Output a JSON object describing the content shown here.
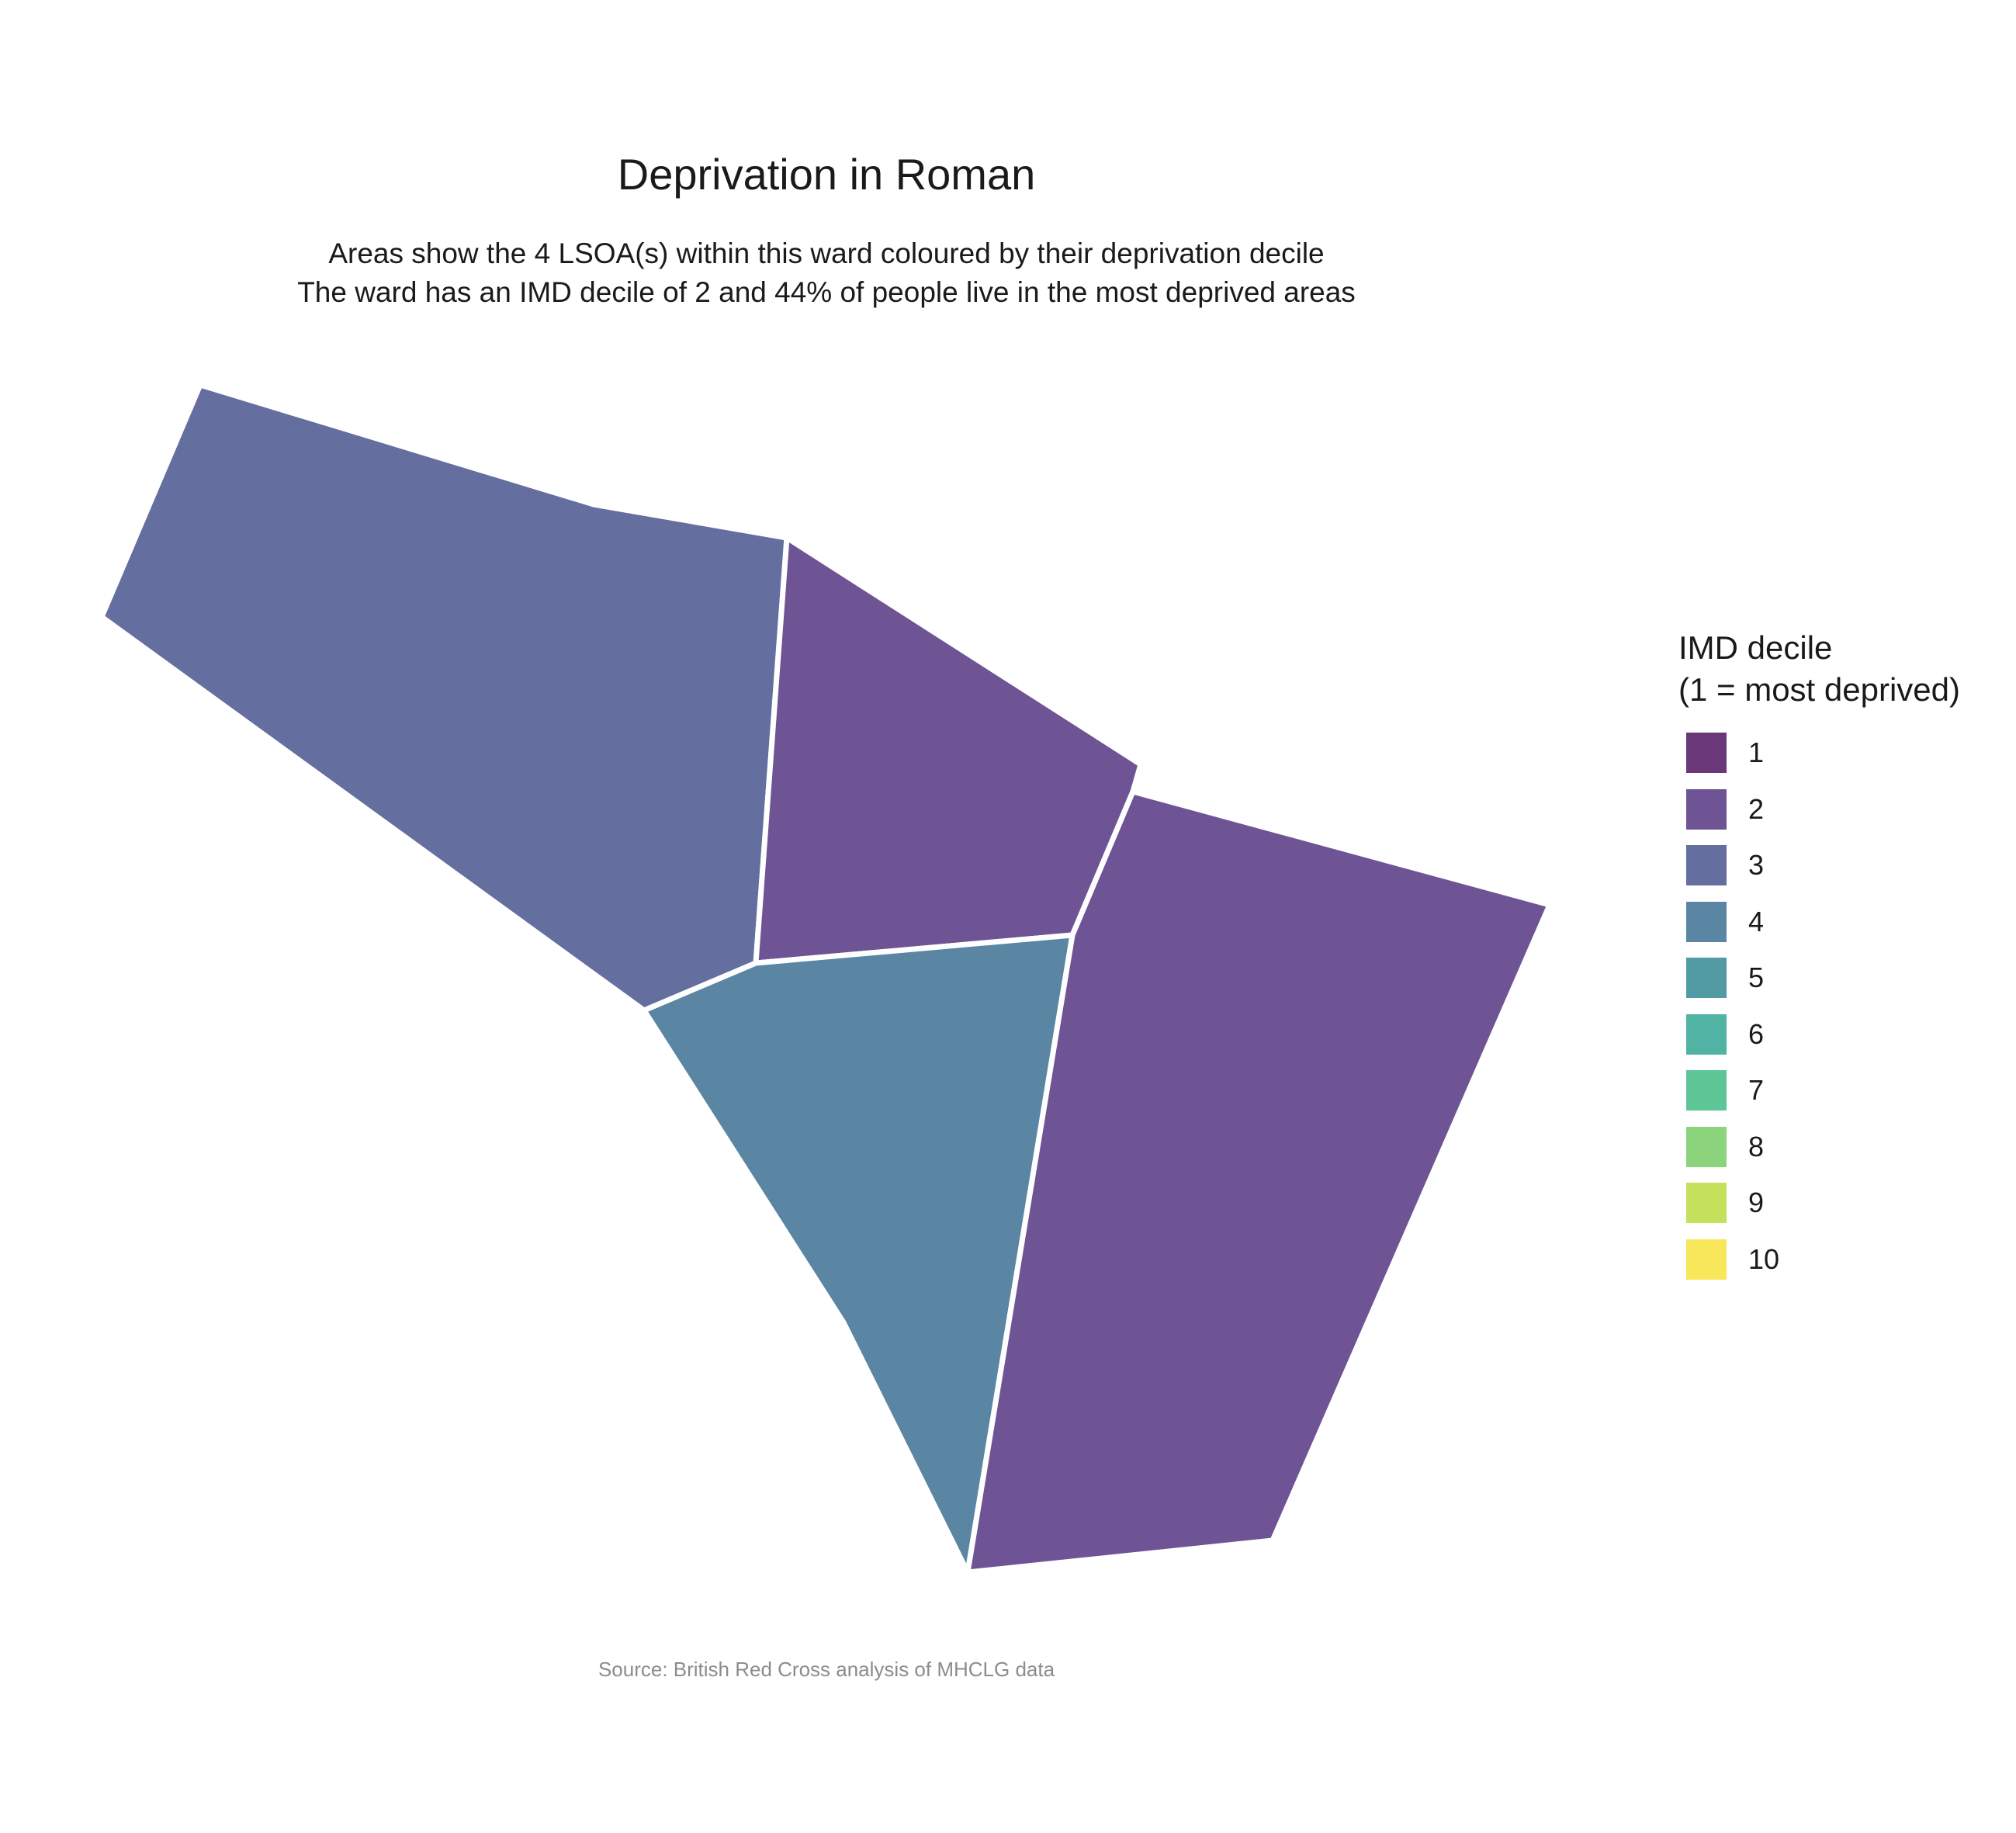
{
  "title": "Deprivation in Roman",
  "subtitle": {
    "line1": "Areas show the 4 LSOA(s) within this ward coloured by their deprivation decile",
    "line2": "The ward has an IMD decile of 2 and 44% of people live in the most deprived areas"
  },
  "legend": {
    "title_line1": "IMD decile",
    "title_line2": "(1 = most deprived)",
    "items": [
      {
        "label": "1",
        "color": "#6a3878"
      },
      {
        "label": "2",
        "color": "#6e5494"
      },
      {
        "label": "3",
        "color": "#646e9f"
      },
      {
        "label": "4",
        "color": "#5a86a4"
      },
      {
        "label": "5",
        "color": "#529ba5"
      },
      {
        "label": "6",
        "color": "#51b3a3"
      },
      {
        "label": "7",
        "color": "#5ec597"
      },
      {
        "label": "8",
        "color": "#8cd47c"
      },
      {
        "label": "9",
        "color": "#c5e15c"
      },
      {
        "label": "10",
        "color": "#f8e75a"
      }
    ]
  },
  "map_data": {
    "areas": [
      {
        "name": "lsoa-northwest",
        "decile": 3
      },
      {
        "name": "lsoa-north-central",
        "decile": 2
      },
      {
        "name": "lsoa-south-central",
        "decile": 4
      },
      {
        "name": "lsoa-east",
        "decile": 2
      }
    ]
  },
  "source": "Source: British Red Cross analysis of MHCLG data"
}
